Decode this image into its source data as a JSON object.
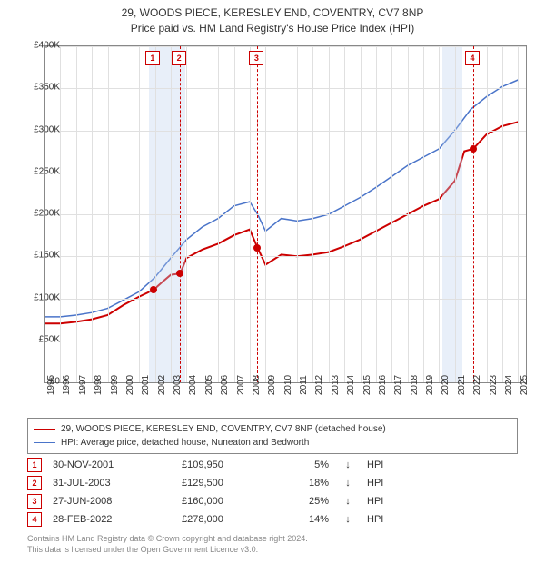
{
  "title": {
    "line1": "29, WOODS PIECE, KERESLEY END, COVENTRY, CV7 8NP",
    "line2": "Price paid vs. HM Land Registry's House Price Index (HPI)"
  },
  "chart": {
    "type": "line",
    "background_color": "#ffffff",
    "grid_color": "#e0e0e0",
    "border_color": "#888888",
    "xlim": [
      1995,
      2025.5
    ],
    "ylim": [
      0,
      400000
    ],
    "yticks": [
      0,
      50000,
      100000,
      150000,
      200000,
      250000,
      300000,
      350000,
      400000
    ],
    "ytick_labels": [
      "£0",
      "£50K",
      "£100K",
      "£150K",
      "£200K",
      "£250K",
      "£300K",
      "£350K",
      "£400K"
    ],
    "xticks": [
      1995,
      1996,
      1997,
      1998,
      1999,
      2000,
      2001,
      2002,
      2003,
      2004,
      2005,
      2006,
      2007,
      2008,
      2009,
      2010,
      2011,
      2012,
      2013,
      2014,
      2015,
      2016,
      2017,
      2018,
      2019,
      2020,
      2021,
      2022,
      2023,
      2024,
      2025
    ],
    "shaded_bands": [
      {
        "start": 2001.6,
        "end": 2003.9,
        "color": "#bed0ed"
      },
      {
        "start": 2020.2,
        "end": 2021.5,
        "color": "#bed0ed"
      }
    ],
    "label_fontsize": 10,
    "series": [
      {
        "id": "property",
        "label": "29, WOODS PIECE, KERESLEY END, COVENTRY, CV7 8NP (detached house)",
        "color": "#cc0000",
        "line_width": 2,
        "points": [
          [
            1995,
            70000
          ],
          [
            1996,
            70000
          ],
          [
            1997,
            72000
          ],
          [
            1998,
            75000
          ],
          [
            1999,
            80000
          ],
          [
            2000,
            92000
          ],
          [
            2001,
            102000
          ],
          [
            2001.9,
            109950
          ],
          [
            2002.5,
            120000
          ],
          [
            2003,
            128000
          ],
          [
            2003.6,
            129500
          ],
          [
            2004,
            148000
          ],
          [
            2005,
            158000
          ],
          [
            2006,
            165000
          ],
          [
            2007,
            175000
          ],
          [
            2008,
            182000
          ],
          [
            2008.5,
            160000
          ],
          [
            2009,
            140000
          ],
          [
            2010,
            152000
          ],
          [
            2011,
            150000
          ],
          [
            2012,
            152000
          ],
          [
            2013,
            155000
          ],
          [
            2014,
            162000
          ],
          [
            2015,
            170000
          ],
          [
            2016,
            180000
          ],
          [
            2017,
            190000
          ],
          [
            2018,
            200000
          ],
          [
            2019,
            210000
          ],
          [
            2020,
            218000
          ],
          [
            2021,
            240000
          ],
          [
            2021.6,
            275000
          ],
          [
            2022.16,
            278000
          ],
          [
            2023,
            295000
          ],
          [
            2024,
            305000
          ],
          [
            2025,
            310000
          ]
        ]
      },
      {
        "id": "hpi",
        "label": "HPI: Average price, detached house, Nuneaton and Bedworth",
        "color": "#4a74c9",
        "line_width": 1.5,
        "points": [
          [
            1995,
            78000
          ],
          [
            1996,
            78000
          ],
          [
            1997,
            80000
          ],
          [
            1998,
            83000
          ],
          [
            1999,
            88000
          ],
          [
            2000,
            98000
          ],
          [
            2001,
            108000
          ],
          [
            2002,
            125000
          ],
          [
            2003,
            148000
          ],
          [
            2004,
            170000
          ],
          [
            2005,
            185000
          ],
          [
            2006,
            195000
          ],
          [
            2007,
            210000
          ],
          [
            2008,
            215000
          ],
          [
            2008.5,
            200000
          ],
          [
            2009,
            180000
          ],
          [
            2010,
            195000
          ],
          [
            2011,
            192000
          ],
          [
            2012,
            195000
          ],
          [
            2013,
            200000
          ],
          [
            2014,
            210000
          ],
          [
            2015,
            220000
          ],
          [
            2016,
            232000
          ],
          [
            2017,
            245000
          ],
          [
            2018,
            258000
          ],
          [
            2019,
            268000
          ],
          [
            2020,
            278000
          ],
          [
            2021,
            300000
          ],
          [
            2022,
            325000
          ],
          [
            2023,
            340000
          ],
          [
            2024,
            352000
          ],
          [
            2025,
            360000
          ]
        ]
      }
    ],
    "markers": [
      {
        "n": 1,
        "x": 2001.9,
        "y": 109950
      },
      {
        "n": 2,
        "x": 2003.58,
        "y": 129500
      },
      {
        "n": 3,
        "x": 2008.49,
        "y": 160000
      },
      {
        "n": 4,
        "x": 2022.16,
        "y": 278000
      }
    ],
    "marker_color": "#cc0000",
    "sale_dot_color": "#cc0000"
  },
  "legend": {
    "items": [
      {
        "color": "#cc0000",
        "width": 2,
        "label": "29, WOODS PIECE, KERESLEY END, COVENTRY, CV7 8NP (detached house)"
      },
      {
        "color": "#4a74c9",
        "width": 1.5,
        "label": "HPI: Average price, detached house, Nuneaton and Bedworth"
      }
    ]
  },
  "sales": [
    {
      "n": "1",
      "date": "30-NOV-2001",
      "price": "£109,950",
      "pct": "5%",
      "arrow": "↓",
      "vs": "HPI"
    },
    {
      "n": "2",
      "date": "31-JUL-2003",
      "price": "£129,500",
      "pct": "18%",
      "arrow": "↓",
      "vs": "HPI"
    },
    {
      "n": "3",
      "date": "27-JUN-2008",
      "price": "£160,000",
      "pct": "25%",
      "arrow": "↓",
      "vs": "HPI"
    },
    {
      "n": "4",
      "date": "28-FEB-2022",
      "price": "£278,000",
      "pct": "14%",
      "arrow": "↓",
      "vs": "HPI"
    }
  ],
  "footer": {
    "line1": "Contains HM Land Registry data © Crown copyright and database right 2024.",
    "line2": "This data is licensed under the Open Government Licence v3.0."
  }
}
